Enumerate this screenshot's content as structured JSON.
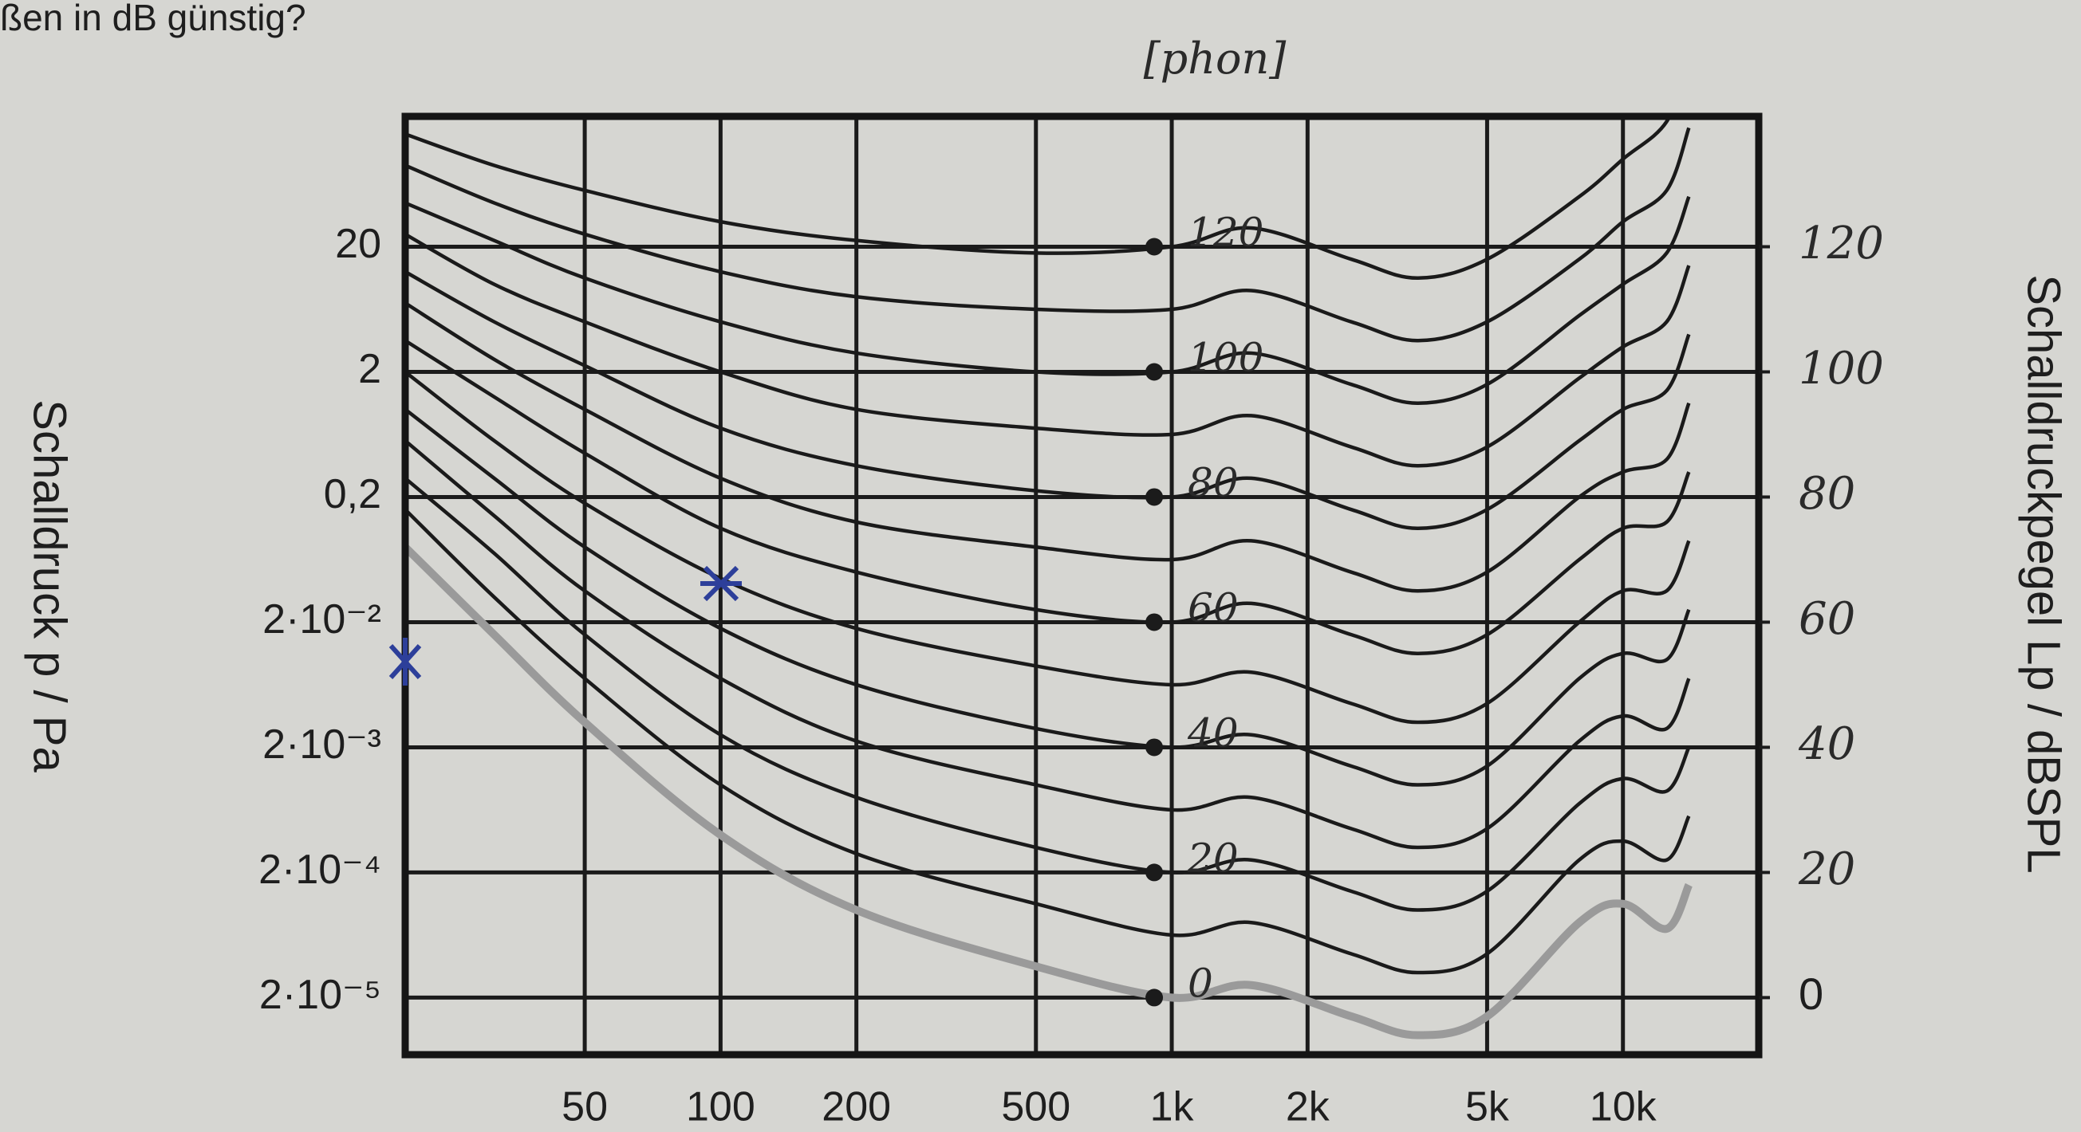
{
  "header": {
    "title": "ßen in dB günstig?"
  },
  "chart_data": {
    "type": "line",
    "annotation": "[phon]",
    "ylabel": "Schalldruck p / Pa",
    "y2label": "Schalldruckpegel Lp / dBSPL",
    "log_x": true,
    "log_y": true,
    "grid": true,
    "xlim": [
      20,
      20000
    ],
    "xticks": [
      50,
      100,
      200,
      500,
      {
        "value": 1000,
        "label": "1k"
      },
      {
        "value": 2000,
        "label": "2k"
      },
      {
        "value": 5000,
        "label": "5k"
      },
      {
        "value": 10000,
        "label": "10k"
      }
    ],
    "ylim": [
      7e-06,
      220
    ],
    "yticks": [
      20,
      2,
      {
        "value": 0.2,
        "label": "0,2"
      },
      {
        "value": 0.02,
        "label": "2·10⁻²"
      },
      {
        "value": 0.002,
        "label": "2·10⁻³"
      },
      {
        "value": 0.0002,
        "label": "2·10⁻⁴"
      },
      {
        "value": 2e-05,
        "label": "2·10⁻⁵"
      }
    ],
    "y2lim": [
      -9.12,
      140.83
    ],
    "y2ticks": [
      0,
      20,
      40,
      60,
      80,
      100,
      120
    ],
    "curve_labels": [
      "0",
      "20",
      "40",
      "60",
      "80",
      "100",
      "120"
    ],
    "x": [
      20,
      31.5,
      50,
      100,
      200,
      500,
      1000,
      1500,
      2500,
      3500,
      5000,
      8000,
      10000,
      12500,
      14000
    ],
    "series": [
      {
        "color": "#9a9a9a",
        "axis": "y2",
        "values": [
          72,
          58,
          44,
          26,
          14,
          5,
          0,
          2,
          -3,
          -6,
          -3,
          12,
          15,
          11,
          18
        ]
      },
      {
        "color": "#1a1a1a",
        "axis": "y2",
        "values": [
          78,
          64,
          51,
          34,
          23,
          15,
          10,
          12,
          7,
          4,
          7,
          22,
          25,
          22,
          29
        ]
      },
      {
        "color": "#1a1a1a",
        "axis": "y2",
        "values": [
          83,
          71,
          58,
          42,
          32,
          24,
          20,
          22,
          17,
          14,
          17,
          31,
          35,
          33,
          40
        ]
      },
      {
        "color": "#1a1a1a",
        "axis": "y2",
        "values": [
          89,
          77,
          65,
          51,
          41,
          34,
          30,
          32,
          27,
          24,
          27,
          41,
          45,
          43,
          51
        ]
      },
      {
        "color": "#1a1a1a",
        "axis": "y2",
        "values": [
          94,
          83,
          72,
          59,
          50,
          43,
          40,
          42,
          37,
          34,
          37,
          51,
          55,
          54,
          62
        ]
      },
      {
        "color": "#1a1a1a",
        "axis": "y2",
        "values": [
          100,
          89,
          79,
          67,
          59,
          53,
          50,
          52,
          47,
          44,
          47,
          60,
          65,
          65,
          73
        ]
      },
      {
        "color": "#1a1a1a",
        "axis": "y2",
        "values": [
          105,
          96,
          87,
          75,
          68,
          62,
          60,
          63,
          58,
          55,
          58,
          70,
          75,
          76,
          84
        ]
      },
      {
        "color": "#1a1a1a",
        "axis": "y2",
        "values": [
          111,
          102,
          94,
          83,
          76,
          72,
          70,
          73,
          68,
          65,
          68,
          80,
          84,
          86,
          95
        ]
      },
      {
        "color": "#1a1a1a",
        "axis": "y2",
        "values": [
          116,
          108,
          101,
          91,
          85,
          81,
          80,
          83,
          78,
          75,
          78,
          89,
          94,
          97,
          106
        ]
      },
      {
        "color": "#1a1a1a",
        "axis": "y2",
        "values": [
          122,
          114,
          108,
          100,
          94,
          91,
          90,
          93,
          88,
          85,
          88,
          99,
          104,
          108,
          117
        ]
      },
      {
        "color": "#1a1a1a",
        "axis": "y2",
        "values": [
          127,
          121,
          115,
          108,
          103,
          100,
          100,
          103,
          98,
          95,
          98,
          109,
          114,
          119,
          128
        ]
      },
      {
        "color": "#1a1a1a",
        "axis": "y2",
        "values": [
          133,
          127,
          122,
          116,
          112,
          110,
          110,
          113,
          108,
          105,
          108,
          118,
          124,
          129,
          139
        ]
      },
      {
        "color": "#1a1a1a",
        "axis": "y2",
        "values": [
          138,
          133,
          129,
          124,
          121,
          119,
          120,
          123,
          118,
          115,
          118,
          128,
          134,
          140,
          150
        ]
      }
    ]
  }
}
